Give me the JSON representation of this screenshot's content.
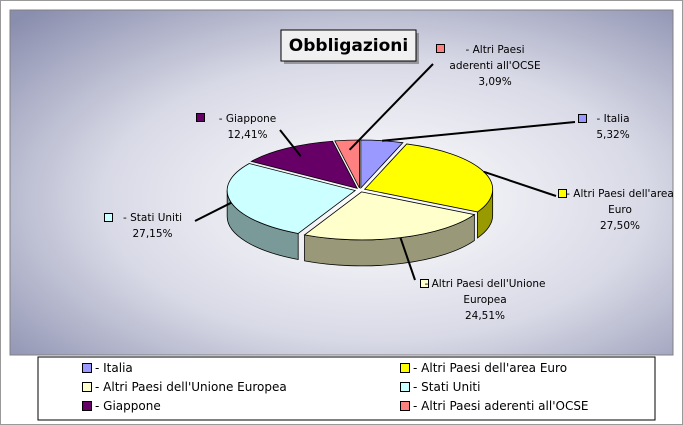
{
  "chart_data": {
    "type": "pie",
    "title": "Obbligazioni",
    "categories": [
      "- Italia",
      "- Altri Paesi dell'area Euro",
      "- Altri Paesi dell'Unione Europea",
      "- Stati Uniti",
      "- Giappone",
      "- Altri Paesi aderenti all'OCSE"
    ],
    "values": [
      5.32,
      27.5,
      24.51,
      27.15,
      12.41,
      3.09
    ],
    "value_labels": [
      "5,32%",
      "27,50%",
      "24,51%",
      "27,15%",
      "12,41%",
      "3,09%"
    ],
    "colors": [
      "#9999ff",
      "#ffff00",
      "#ffffcc",
      "#ccffff",
      "#660066",
      "#ff8080"
    ],
    "legend": "bottom"
  }
}
